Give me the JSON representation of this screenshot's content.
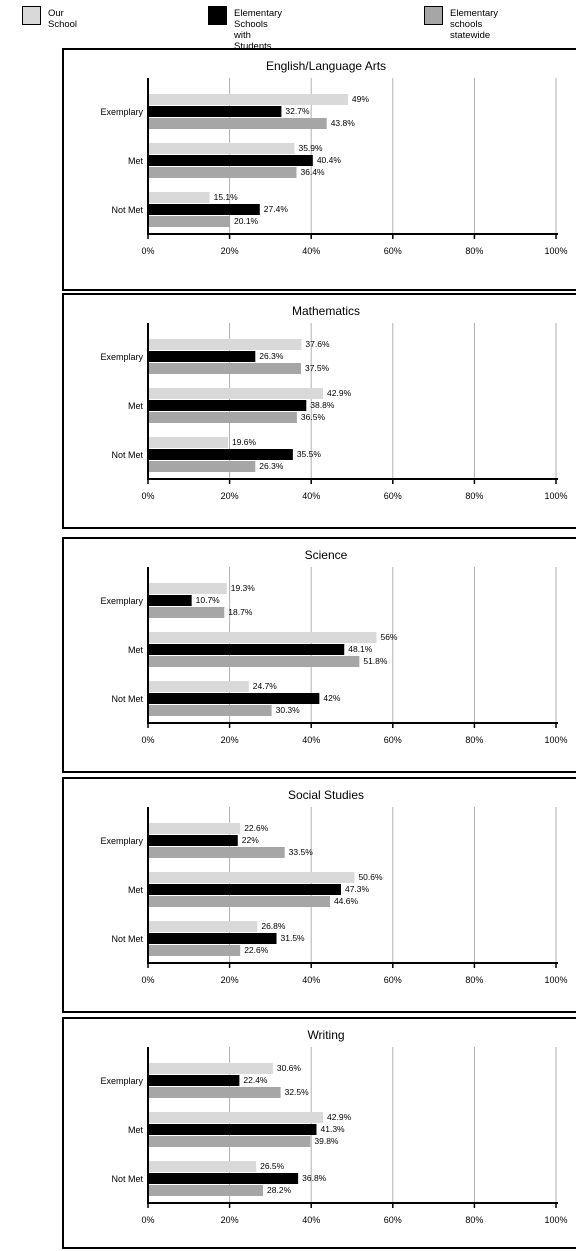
{
  "legend": [
    {
      "label": "Our School",
      "color": "#d9d9d9"
    },
    {
      "label": "Elementary Schools with\nStudents Like Ours",
      "color": "#000000"
    },
    {
      "label": "Elementary schools\nstatewide",
      "color": "#a6a6a6"
    }
  ],
  "chart_data": [
    {
      "type": "bar",
      "orientation": "horizontal",
      "title": "English/Language Arts",
      "categories": [
        "Exemplary",
        "Met",
        "Not Met"
      ],
      "xlim": [
        0,
        100
      ],
      "xticks": [
        "0%",
        "20%",
        "40%",
        "60%",
        "80%",
        "100%"
      ],
      "grid": true,
      "series": [
        {
          "name": "Our School",
          "values": [
            49,
            35.9,
            15.1
          ],
          "labels": [
            "49%",
            "35.9%",
            "15.1%"
          ],
          "color": "#d9d9d9"
        },
        {
          "name": "Elementary Schools with Students Like Ours",
          "values": [
            32.7,
            40.4,
            27.4
          ],
          "labels": [
            "32.7%",
            "40.4%",
            "27.4%"
          ],
          "color": "#000000"
        },
        {
          "name": "Elementary schools statewide",
          "values": [
            43.8,
            36.4,
            20.1
          ],
          "labels": [
            "43.8%",
            "36.4%",
            "20.1%"
          ],
          "color": "#a6a6a6"
        }
      ]
    },
    {
      "type": "bar",
      "orientation": "horizontal",
      "title": "Mathematics",
      "categories": [
        "Exemplary",
        "Met",
        "Not Met"
      ],
      "xlim": [
        0,
        100
      ],
      "xticks": [
        "0%",
        "20%",
        "40%",
        "60%",
        "80%",
        "100%"
      ],
      "grid": true,
      "series": [
        {
          "name": "Our School",
          "values": [
            37.6,
            42.9,
            19.6
          ],
          "labels": [
            "37.6%",
            "42.9%",
            "19.6%"
          ],
          "color": "#d9d9d9"
        },
        {
          "name": "Elementary Schools with Students Like Ours",
          "values": [
            26.3,
            38.8,
            35.5
          ],
          "labels": [
            "26.3%",
            "38.8%",
            "35.5%"
          ],
          "color": "#000000"
        },
        {
          "name": "Elementary schools statewide",
          "values": [
            37.5,
            36.5,
            26.3
          ],
          "labels": [
            "37.5%",
            "36.5%",
            "26.3%"
          ],
          "color": "#a6a6a6"
        }
      ]
    },
    {
      "type": "bar",
      "orientation": "horizontal",
      "title": "Science",
      "categories": [
        "Exemplary",
        "Met",
        "Not Met"
      ],
      "xlim": [
        0,
        100
      ],
      "xticks": [
        "0%",
        "20%",
        "40%",
        "60%",
        "80%",
        "100%"
      ],
      "grid": true,
      "series": [
        {
          "name": "Our School",
          "values": [
            19.3,
            56,
            24.7
          ],
          "labels": [
            "19.3%",
            "56%",
            "24.7%"
          ],
          "color": "#d9d9d9"
        },
        {
          "name": "Elementary Schools with Students Like Ours",
          "values": [
            10.7,
            48.1,
            42
          ],
          "labels": [
            "10.7%",
            "48.1%",
            "42%"
          ],
          "color": "#000000"
        },
        {
          "name": "Elementary schools statewide",
          "values": [
            18.7,
            51.8,
            30.3
          ],
          "labels": [
            "18.7%",
            "51.8%",
            "30.3%"
          ],
          "color": "#a6a6a6"
        }
      ]
    },
    {
      "type": "bar",
      "orientation": "horizontal",
      "title": "Social Studies",
      "categories": [
        "Exemplary",
        "Met",
        "Not Met"
      ],
      "xlim": [
        0,
        100
      ],
      "xticks": [
        "0%",
        "20%",
        "40%",
        "60%",
        "80%",
        "100%"
      ],
      "grid": true,
      "series": [
        {
          "name": "Our School",
          "values": [
            22.6,
            50.6,
            26.8
          ],
          "labels": [
            "22.6%",
            "50.6%",
            "26.8%"
          ],
          "color": "#d9d9d9"
        },
        {
          "name": "Elementary Schools with Students Like Ours",
          "values": [
            22,
            47.3,
            31.5
          ],
          "labels": [
            "22%",
            "47.3%",
            "31.5%"
          ],
          "color": "#000000"
        },
        {
          "name": "Elementary schools statewide",
          "values": [
            33.5,
            44.6,
            22.6
          ],
          "labels": [
            "33.5%",
            "44.6%",
            "22.6%"
          ],
          "color": "#a6a6a6"
        }
      ]
    },
    {
      "type": "bar",
      "orientation": "horizontal",
      "title": "Writing",
      "categories": [
        "Exemplary",
        "Met",
        "Not Met"
      ],
      "xlim": [
        0,
        100
      ],
      "xticks": [
        "0%",
        "20%",
        "40%",
        "60%",
        "80%",
        "100%"
      ],
      "grid": true,
      "series": [
        {
          "name": "Our School",
          "values": [
            30.6,
            42.9,
            26.5
          ],
          "labels": [
            "30.6%",
            "42.9%",
            "26.5%"
          ],
          "color": "#d9d9d9"
        },
        {
          "name": "Elementary Schools with Students Like Ours",
          "values": [
            22.4,
            41.3,
            36.8
          ],
          "labels": [
            "22.4%",
            "41.3%",
            "36.8%"
          ],
          "color": "#000000"
        },
        {
          "name": "Elementary schools statewide",
          "values": [
            32.5,
            39.8,
            28.2
          ],
          "labels": [
            "32.5%",
            "39.8%",
            "28.2%"
          ],
          "color": "#a6a6a6"
        }
      ]
    }
  ]
}
